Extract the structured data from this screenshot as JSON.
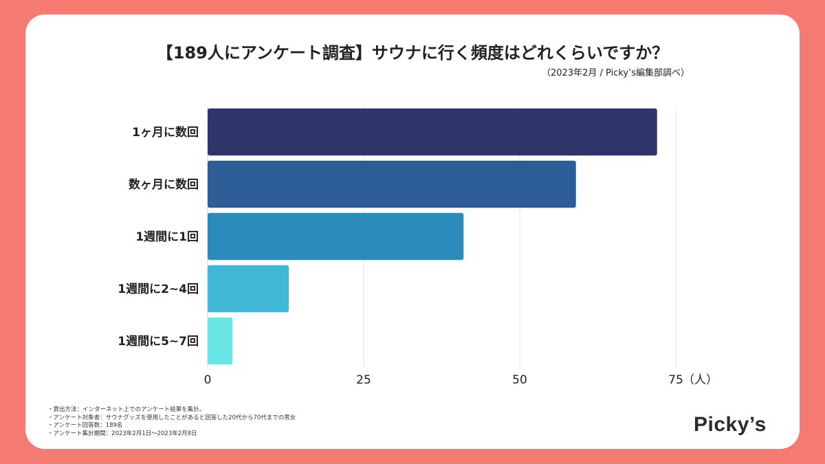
{
  "title": "【189人にアンケート調査】サウナに行く頻度はどれくらいですか？",
  "subtitle": "（2023年2月 / Picky’s編集部調べ）",
  "chart_data": {
    "type": "bar",
    "orientation": "horizontal",
    "categories": [
      "1ヶ月に数回",
      "数ヶ月に数回",
      "1週間に1回",
      "1週間に2~4回",
      "1週間に5~7回"
    ],
    "values": [
      72,
      59,
      41,
      13,
      4
    ],
    "colors": [
      "#2f356b",
      "#2d5d96",
      "#2b8cbb",
      "#40b7d6",
      "#6ae6e6"
    ],
    "xlim": [
      0,
      75
    ],
    "xticks": [
      0,
      25,
      50,
      75
    ],
    "xtick_labels": [
      "0",
      "25",
      "50",
      "75"
    ],
    "xunit": "（人）",
    "grid": true
  },
  "notes": [
    "・算出方法：インターネット上でのアンケート結果を集計。",
    "・アンケート対象者：サウナグッズを使用したことがあると回答した20代から70代までの男女",
    "・アンケート回答数：189名",
    "・アンケート集計期間：2023年2月1日〜2023年2月8日"
  ],
  "logo": "Picky’s"
}
